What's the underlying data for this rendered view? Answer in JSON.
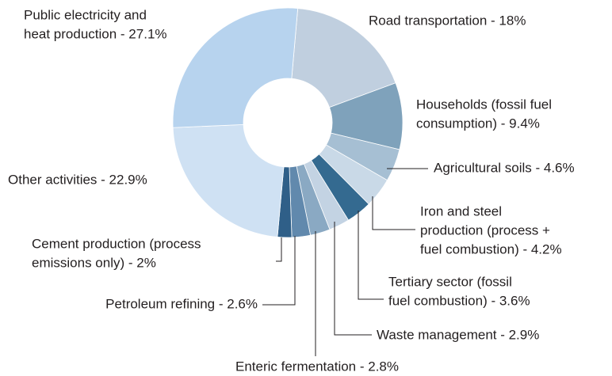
{
  "chart_data": {
    "type": "donut",
    "categories": [
      [
        "Road transportation - 18%"
      ],
      [
        "Households (fossil fuel",
        "consumption) - 9.4%"
      ],
      [
        "Agricultural soils - 4.6%"
      ],
      [
        "Iron and steel",
        "production (process +",
        "fuel combustion) - 4.2%"
      ],
      [
        "Tertiary sector (fossil",
        "fuel combustion) - 3.6%"
      ],
      [
        "Waste management - 2.9%"
      ],
      [
        "Enteric fermentation - 2.8%"
      ],
      [
        "Petroleum refining - 2.6%"
      ],
      [
        "Cement production (process",
        "emissions only) - 2%"
      ],
      [
        "Other activities - 22.9%"
      ],
      [
        "Public electricity and",
        "heat production - 27.1%"
      ]
    ],
    "values": [
      18,
      9.4,
      4.6,
      4.2,
      3.6,
      2.9,
      2.8,
      2.6,
      2,
      22.9,
      27.1
    ],
    "colors": [
      "#c0cfdf",
      "#7fa2bb",
      "#a6bfd3",
      "#c9d9e7",
      "#346a90",
      "#c3d3e3",
      "#8aa9c3",
      "#6189ad",
      "#2f5f88",
      "#cfe1f3",
      "#b7d3ee"
    ]
  }
}
